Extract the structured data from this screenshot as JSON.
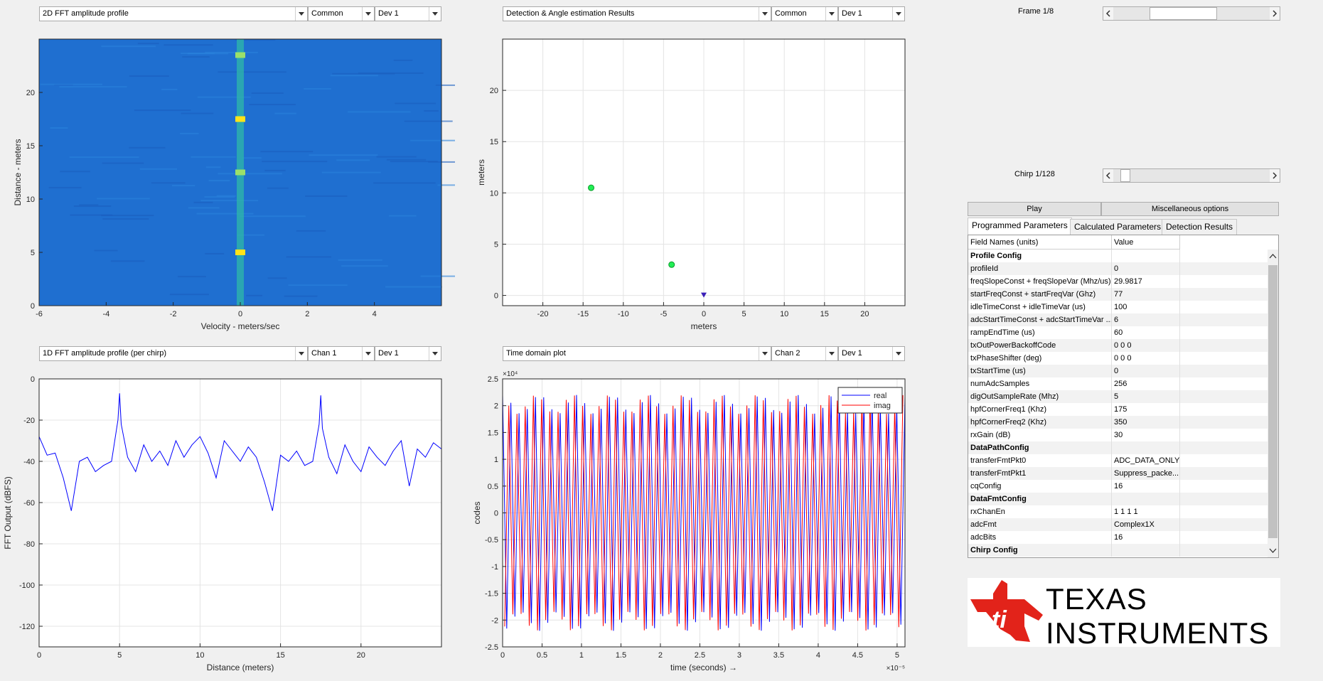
{
  "panels": {
    "tl": {
      "select": "2D FFT amplitude profile",
      "mode": "Common",
      "dev": "Dev 1"
    },
    "tr": {
      "select": "Detection & Angle estimation Results",
      "mode": "Common",
      "dev": "Dev 1"
    },
    "bl": {
      "select": "1D FFT amplitude profile (per chirp)",
      "mode": "Chan 1",
      "dev": "Dev 1"
    },
    "br": {
      "select": "Time domain plot",
      "mode": "Chan 2",
      "dev": "Dev 1"
    }
  },
  "controls": {
    "frame_label": "Frame 1/8",
    "frame_value": 0.4,
    "chirp_label": "Chirp 1/128",
    "chirp_value": 0.05,
    "play_label": "Play",
    "misc_label": "Miscellaneous options"
  },
  "tabs": [
    "Programmed Parameters",
    "Calculated Parameters",
    "Detection Results"
  ],
  "table": {
    "col1": "Field Names    (units)",
    "col2": "Value",
    "rows": [
      {
        "name": "Profile Config",
        "value": "",
        "section": true
      },
      {
        "name": "profileId",
        "value": "0"
      },
      {
        "name": "freqSlopeConst + freqSlopeVar (Mhz/us)",
        "value": "29.9817"
      },
      {
        "name": "startFreqConst + startFreqVar (Ghz)",
        "value": "77"
      },
      {
        "name": "idleTimeConst + idleTimeVar (us)",
        "value": "100"
      },
      {
        "name": "adcStartTimeConst + adcStartTimeVar ...",
        "value": "6"
      },
      {
        "name": "rampEndTime (us)",
        "value": "60"
      },
      {
        "name": "txOutPowerBackoffCode",
        "value": "0 0 0"
      },
      {
        "name": "txPhaseShifter (deg)",
        "value": "0 0 0"
      },
      {
        "name": "txStartTime (us)",
        "value": "0"
      },
      {
        "name": "numAdcSamples",
        "value": "256"
      },
      {
        "name": "digOutSampleRate (Mhz)",
        "value": "5"
      },
      {
        "name": "hpfCornerFreq1 (Khz)",
        "value": "175"
      },
      {
        "name": "hpfCornerFreq2 (Khz)",
        "value": "350"
      },
      {
        "name": "rxGain (dB)",
        "value": "30"
      },
      {
        "name": "DataPathConfig",
        "value": "",
        "section": true
      },
      {
        "name": "transferFmtPkt0",
        "value": "ADC_DATA_ONLY"
      },
      {
        "name": "transferFmtPkt1",
        "value": "Suppress_packe..."
      },
      {
        "name": "cqConfig",
        "value": "16"
      },
      {
        "name": "DataFmtConfig",
        "value": "",
        "section": true
      },
      {
        "name": "rxChanEn",
        "value": "1 1 1 1"
      },
      {
        "name": "adcFmt",
        "value": "Complex1X"
      },
      {
        "name": "adcBits",
        "value": "16"
      },
      {
        "name": "Chirp Config",
        "value": "",
        "section": true
      }
    ]
  },
  "logo": {
    "line1": "Texas",
    "line2": "Instruments",
    "color": "#e2231a"
  },
  "chart_data": [
    {
      "type": "heatmap",
      "xlabel": "Velocity - meters/sec",
      "ylabel": "Distance - meters",
      "xlim": [
        -6,
        6
      ],
      "ylim": [
        0,
        25
      ],
      "xticks": [
        -6,
        -4,
        -2,
        0,
        2,
        4
      ],
      "yticks": [
        0,
        5,
        10,
        15,
        20
      ],
      "peaks": [
        {
          "velocity": 0,
          "distance": 5.0,
          "level": "high"
        },
        {
          "velocity": 0,
          "distance": 17.5,
          "level": "high"
        },
        {
          "velocity": 0,
          "distance": 12.5,
          "level": "medium"
        },
        {
          "velocity": 0,
          "distance": 23.5,
          "level": "medium"
        }
      ],
      "colors": {
        "background": "#1f6fd0",
        "band": "#2fb8a8",
        "peak": "#ffe21a"
      }
    },
    {
      "type": "scatter",
      "xlabel": "meters",
      "ylabel": "meters",
      "xlim": [
        -25,
        25
      ],
      "ylim": [
        -1,
        25
      ],
      "xticks": [
        -20,
        -15,
        -10,
        -5,
        0,
        5,
        10,
        15,
        20
      ],
      "yticks": [
        0,
        5,
        10,
        15,
        20
      ],
      "grid": true,
      "points": [
        {
          "x": -14,
          "y": 10.5
        },
        {
          "x": -4,
          "y": 3.0
        }
      ],
      "origin_marker": {
        "x": 0,
        "y": 0
      },
      "colors": {
        "point": "#22ee55",
        "origin": "#3a1fb8"
      }
    },
    {
      "type": "line",
      "xlabel": "Distance (meters)",
      "ylabel": "FFT Output (dBFS)",
      "xlim": [
        0,
        25
      ],
      "ylim": [
        -130,
        0
      ],
      "xticks": [
        0,
        5,
        10,
        15,
        20
      ],
      "yticks": [
        0,
        -20,
        -40,
        -60,
        -80,
        -100,
        -120
      ],
      "grid": true,
      "series": [
        {
          "x": [
            0,
            0.5,
            1,
            1.5,
            2,
            2.5,
            3,
            3.5,
            4,
            4.5,
            4.9,
            5,
            5.1,
            5.5,
            6,
            6.5,
            7,
            7.5,
            8,
            8.5,
            9,
            9.5,
            10,
            10.5,
            11,
            11.5,
            12,
            12.5,
            13,
            13.5,
            14,
            14.5,
            15,
            15.5,
            16,
            16.5,
            17,
            17.4,
            17.5,
            17.6,
            18,
            18.5,
            19,
            19.5,
            20,
            20.5,
            21,
            21.5,
            22,
            22.5,
            23,
            23.5,
            24,
            24.5,
            25
          ],
          "values": [
            -28,
            -37,
            -36,
            -48,
            -64,
            -40,
            -38,
            -45,
            -42,
            -40,
            -20,
            -7,
            -22,
            -38,
            -45,
            -32,
            -40,
            -35,
            -42,
            -30,
            -38,
            -32,
            -28,
            -36,
            -48,
            -30,
            -35,
            -40,
            -33,
            -38,
            -50,
            -64,
            -37,
            -40,
            -35,
            -42,
            -40,
            -22,
            -8,
            -24,
            -38,
            -46,
            -32,
            -40,
            -45,
            -33,
            -38,
            -42,
            -35,
            -30,
            -52,
            -34,
            -38,
            -31,
            -34
          ],
          "color": "#0000ff"
        }
      ]
    },
    {
      "type": "line",
      "xlabel": "time  (seconds) →",
      "ylabel": "codes",
      "x_exponent": "×10⁻⁵",
      "y_exponent": "×10⁴",
      "xlim": [
        0,
        5.1
      ],
      "ylim": [
        -2.5,
        2.5
      ],
      "xticks": [
        0,
        0.5,
        1,
        1.5,
        2,
        2.5,
        3,
        3.5,
        4,
        4.5,
        5
      ],
      "yticks": [
        2.5,
        2,
        1.5,
        1,
        0.5,
        0,
        -0.5,
        -1,
        -1.5,
        -2,
        -2.5
      ],
      "grid": true,
      "legend_position": "top-right",
      "series": [
        {
          "name": "real",
          "color": "#0000ff",
          "amplitude": 2.2,
          "cycles": 49
        },
        {
          "name": "imag",
          "color": "#ff0000",
          "amplitude": 2.2,
          "cycles": 49
        }
      ]
    }
  ]
}
